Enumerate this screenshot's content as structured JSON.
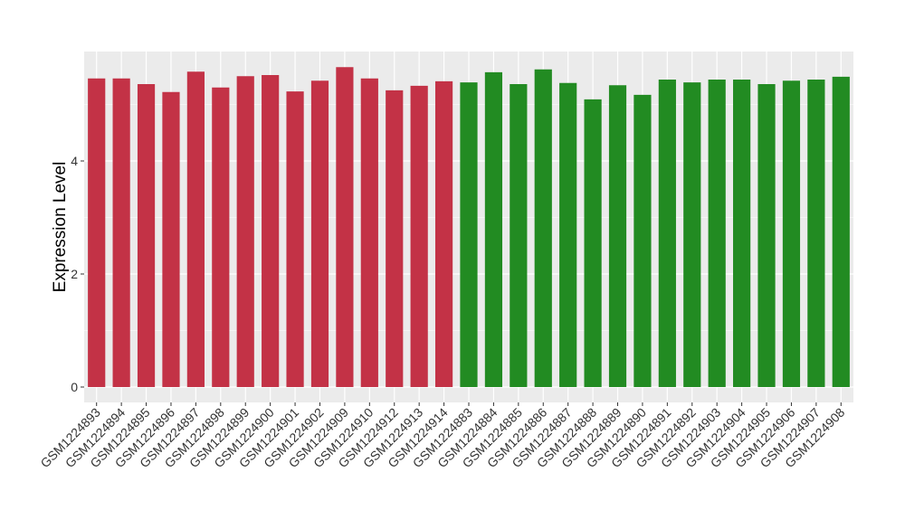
{
  "chart_data": {
    "type": "bar",
    "title": "",
    "xlabel": "",
    "ylabel": "Expression Level",
    "ylim": [
      0,
      5.9
    ],
    "yticks": [
      0,
      2,
      4
    ],
    "grid": true,
    "categories": [
      "GSM1224893",
      "GSM1224894",
      "GSM1224895",
      "GSM1224896",
      "GSM1224897",
      "GSM1224898",
      "GSM1224899",
      "GSM1224900",
      "GSM1224901",
      "GSM1224902",
      "GSM1224909",
      "GSM1224910",
      "GSM1224912",
      "GSM1224913",
      "GSM1224914",
      "GSM1224883",
      "GSM1224884",
      "GSM1224885",
      "GSM1224886",
      "GSM1224887",
      "GSM1224888",
      "GSM1224889",
      "GSM1224890",
      "GSM1224891",
      "GSM1224892",
      "GSM1224903",
      "GSM1224904",
      "GSM1224905",
      "GSM1224906",
      "GSM1224907",
      "GSM1224908"
    ],
    "values": [
      5.46,
      5.46,
      5.36,
      5.22,
      5.58,
      5.3,
      5.5,
      5.52,
      5.23,
      5.42,
      5.66,
      5.46,
      5.25,
      5.33,
      5.41,
      5.39,
      5.57,
      5.36,
      5.62,
      5.38,
      5.09,
      5.34,
      5.17,
      5.44,
      5.39,
      5.44,
      5.44,
      5.36,
      5.42,
      5.44,
      5.49
    ],
    "groups": [
      0,
      0,
      0,
      0,
      0,
      0,
      0,
      0,
      0,
      0,
      0,
      0,
      0,
      0,
      0,
      1,
      1,
      1,
      1,
      1,
      1,
      1,
      1,
      1,
      1,
      1,
      1,
      1,
      1,
      1,
      1
    ],
    "group_colors": [
      "#C33246",
      "#228B22"
    ],
    "panel_background": "#EBEBEB"
  }
}
